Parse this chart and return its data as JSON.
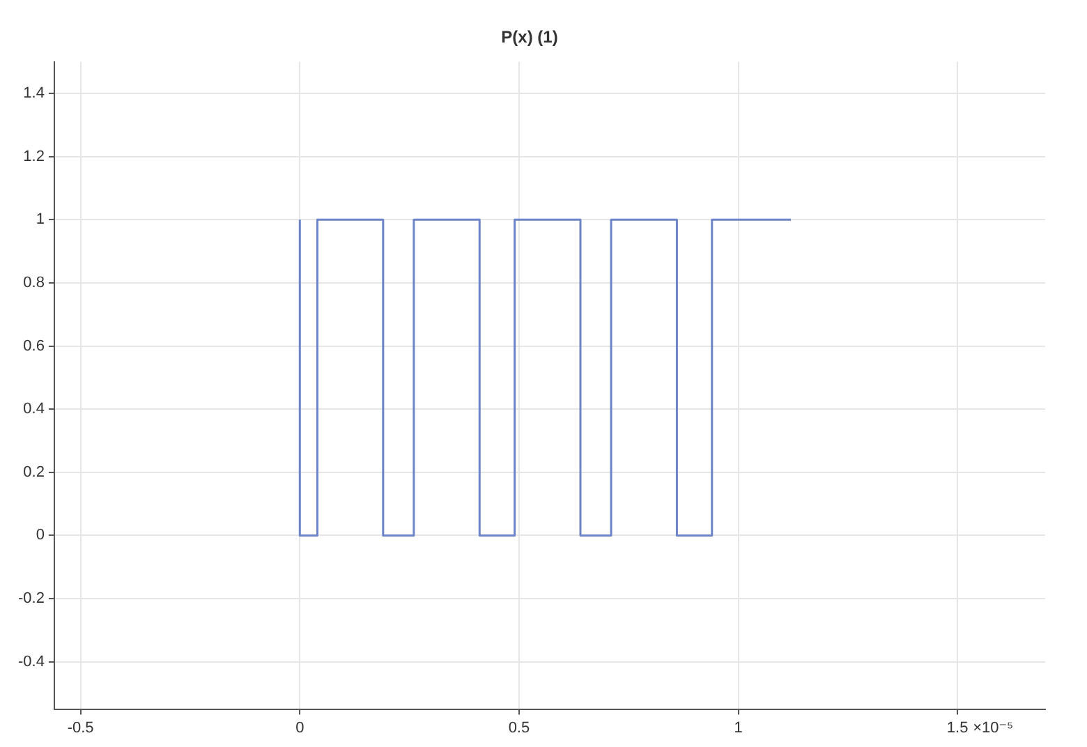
{
  "chart_data": {
    "type": "step",
    "title": "P(x) (1)",
    "x": [
      0,
      0.04,
      0.19,
      0.26,
      0.41,
      0.49,
      0.64,
      0.71,
      0.86,
      0.94,
      1.09,
      1.12
    ],
    "series": [
      {
        "color": "#6d85c8",
        "values": [
          1,
          0,
          1,
          0,
          1,
          0,
          1,
          0,
          1,
          0,
          1,
          1
        ]
      }
    ],
    "xlim": [
      -0.56,
      1.7
    ],
    "xticks": [
      -0.5,
      0,
      0.5,
      1,
      1.5
    ],
    "xlabel": "×10⁻⁵",
    "ylim": [
      -0.55,
      1.5
    ],
    "yticks": [
      -0.4,
      -0.2,
      0,
      0.2,
      0.4,
      0.6,
      0.8,
      1,
      1.2,
      1.4
    ],
    "grid": true,
    "legend": false
  }
}
